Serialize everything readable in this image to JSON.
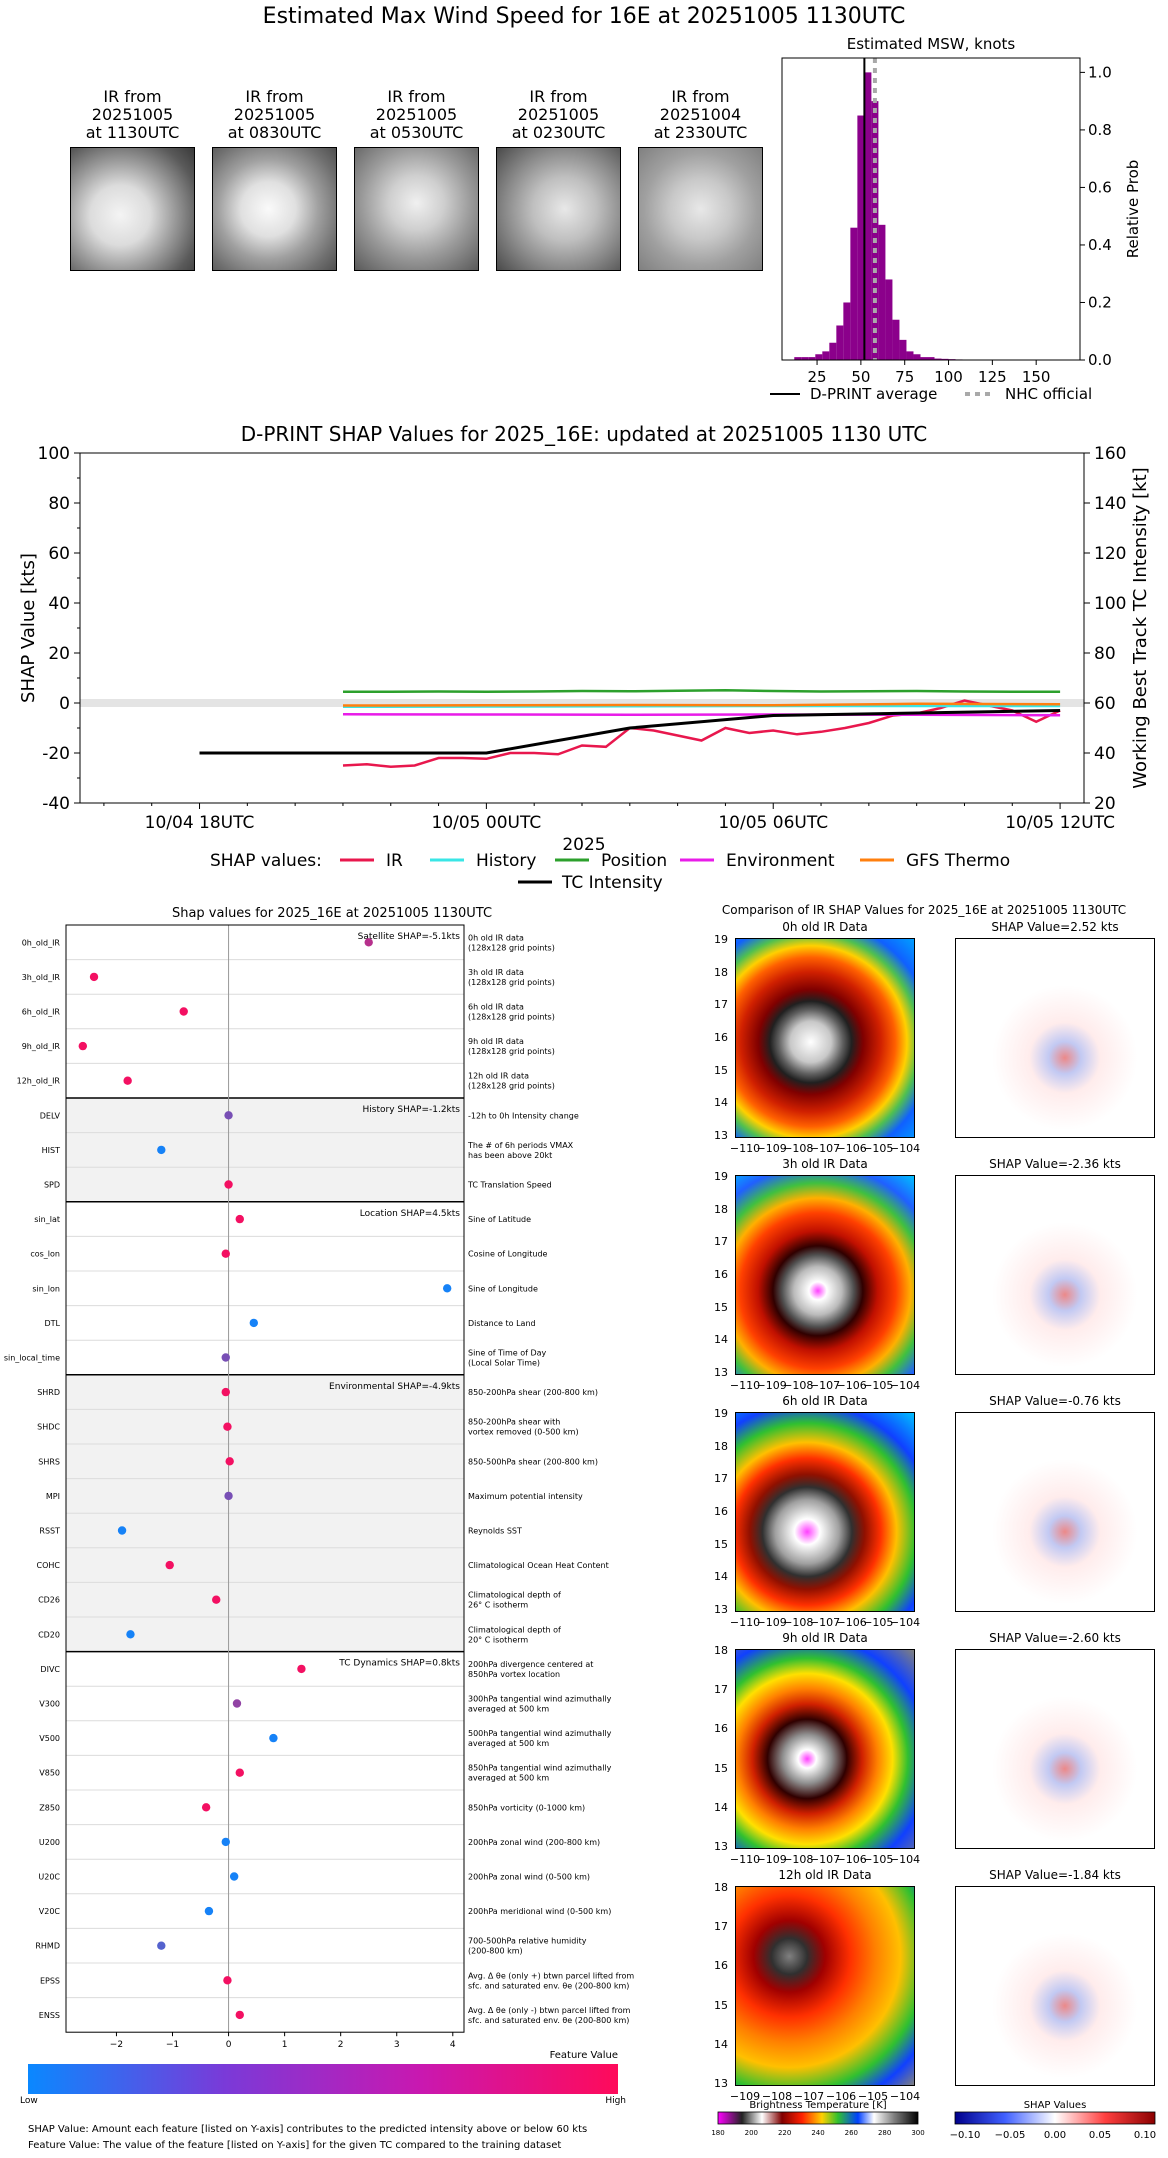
{
  "page_title": "Estimated Max Wind Speed for 16E at 20251005 1130UTC",
  "ir_thumbs": [
    {
      "l1": "IR from",
      "l2": "20251005",
      "l3": "at 1130UTC"
    },
    {
      "l1": "IR from",
      "l2": "20251005",
      "l3": "at 0830UTC"
    },
    {
      "l1": "IR from",
      "l2": "20251005",
      "l3": "at 0530UTC"
    },
    {
      "l1": "IR from",
      "l2": "20251005",
      "l3": "at 0230UTC"
    },
    {
      "l1": "IR from",
      "l2": "20251004",
      "l3": "at 2330UTC"
    }
  ],
  "chart_data": [
    {
      "type": "bar",
      "title": "Estimated MSW, knots",
      "ylabel": "Relative Prob",
      "xlim": [
        5,
        175
      ],
      "ylim": [
        0,
        1.05
      ],
      "xticks": [
        25,
        50,
        75,
        100,
        125,
        150
      ],
      "yticks": [
        0.0,
        0.2,
        0.4,
        0.6,
        0.8,
        1.0
      ],
      "bin_width": 4,
      "bins": [
        [
          12,
          0.01
        ],
        [
          16,
          0.01
        ],
        [
          20,
          0.01
        ],
        [
          24,
          0.02
        ],
        [
          28,
          0.03
        ],
        [
          32,
          0.06
        ],
        [
          36,
          0.12
        ],
        [
          40,
          0.2
        ],
        [
          44,
          0.46
        ],
        [
          48,
          0.85
        ],
        [
          52,
          1.0
        ],
        [
          56,
          0.9
        ],
        [
          60,
          0.47
        ],
        [
          64,
          0.28
        ],
        [
          68,
          0.14
        ],
        [
          72,
          0.07
        ],
        [
          76,
          0.03
        ],
        [
          80,
          0.02
        ],
        [
          84,
          0.01
        ],
        [
          88,
          0.01
        ],
        [
          92,
          0.005
        ],
        [
          96,
          0.004
        ],
        [
          100,
          0.003
        ],
        [
          104,
          0.002
        ],
        [
          108,
          0.001
        ]
      ],
      "dprint_average": 52,
      "nhc_official": 58,
      "legend": [
        "D-PRINT average",
        "NHC official"
      ],
      "colors": {
        "bars": "#8b008b",
        "avg": "#000000",
        "nhc": "#a9a9a9"
      }
    },
    {
      "type": "line",
      "title": "D-PRINT SHAP Values for 2025_16E: updated at 20251005 1130 UTC",
      "ylabel": "SHAP Value [kts]",
      "y2label": "Working Best Track TC Intensity [kt]",
      "xlabel": "2025",
      "xlim": [
        -2.5,
        18.5
      ],
      "ylim": [
        -40,
        100
      ],
      "y2lim": [
        20,
        160
      ],
      "yticks": [
        -40,
        -20,
        0,
        20,
        40,
        60,
        80,
        100
      ],
      "y2ticks": [
        20,
        40,
        60,
        80,
        100,
        120,
        140,
        160
      ],
      "xtick_hours": [
        0,
        6,
        12,
        18
      ],
      "xtick_labels": [
        "10/04 18UTC",
        "10/05 00UTC",
        "10/05 06UTC",
        "10/05 12UTC"
      ],
      "legend_title": "SHAP values:",
      "series": [
        {
          "name": "IR",
          "color": "#e8174d",
          "x": [
            3,
            3.5,
            4,
            4.5,
            5,
            5.5,
            6,
            6.5,
            7,
            7.5,
            8,
            8.5,
            9,
            9.5,
            10,
            10.5,
            11,
            11.5,
            12,
            12.5,
            13,
            13.5,
            14,
            14.5,
            15,
            15.5,
            16,
            16.5,
            17,
            17.5,
            18
          ],
          "y": [
            -25,
            -24.5,
            -25.5,
            -25,
            -22,
            -22,
            -22.3,
            -20,
            -20,
            -20.5,
            -17,
            -17.5,
            -10,
            -11,
            -13,
            -15,
            -10,
            -12,
            -11,
            -12.5,
            -11.5,
            -10,
            -8,
            -5,
            -4.2,
            -2,
            1,
            -1,
            -3,
            -7.5,
            -3
          ]
        },
        {
          "name": "History",
          "color": "#39e6e6",
          "x": [
            3,
            6,
            9,
            12,
            15,
            18
          ],
          "y": [
            -1.5,
            -1.4,
            -1.3,
            -1.2,
            -1.2,
            -1.2
          ]
        },
        {
          "name": "Position",
          "color": "#2ca02c",
          "x": [
            3,
            4,
            5,
            6,
            7,
            8,
            9,
            10,
            11,
            12,
            13,
            14,
            15,
            16,
            17,
            18
          ],
          "y": [
            4.5,
            4.5,
            4.6,
            4.5,
            4.6,
            4.8,
            4.7,
            4.9,
            5.1,
            4.8,
            4.6,
            4.7,
            4.8,
            4.6,
            4.5,
            4.5
          ]
        },
        {
          "name": "Environment",
          "color": "#e81ce8",
          "x": [
            3,
            6,
            9,
            12,
            15,
            18
          ],
          "y": [
            -4.5,
            -4.6,
            -4.7,
            -4.6,
            -4.7,
            -4.9
          ]
        },
        {
          "name": "GFS Thermo",
          "color": "#ff7f0e",
          "x": [
            3,
            6,
            9,
            12,
            15,
            18
          ],
          "y": [
            -1,
            -0.9,
            -0.8,
            -0.9,
            -0.3,
            -0.5
          ]
        }
      ],
      "tc_intensity": {
        "name": "TC Intensity",
        "color": "#000000",
        "x": [
          0,
          6,
          9,
          12,
          18
        ],
        "y": [
          40,
          40,
          50,
          55,
          57
        ]
      }
    },
    {
      "type": "scatter",
      "title": "Shap values for 2025_16E at 20251005 1130UTC",
      "xlabel": "SHAP Value [kts]",
      "xlim": [
        -2.9,
        4.2
      ],
      "xticks": [
        -2,
        -1,
        0,
        1,
        2,
        3,
        4
      ],
      "groups": [
        {
          "header": "Satellite SHAP=-5.1kts",
          "shaded": false,
          "features": [
            {
              "name": "0h_old_IR",
              "shap": 2.5,
              "fv": 0.7,
              "desc": [
                "0h old IR data",
                "(128x128 grid points)"
              ]
            },
            {
              "name": "3h_old_IR",
              "shap": -2.4,
              "fv": 0.95,
              "desc": [
                "3h old IR data",
                "(128x128 grid points)"
              ]
            },
            {
              "name": "6h_old_IR",
              "shap": -0.8,
              "fv": 0.95,
              "desc": [
                "6h old IR data",
                "(128x128 grid points)"
              ]
            },
            {
              "name": "9h_old_IR",
              "shap": -2.6,
              "fv": 0.95,
              "desc": [
                "9h old IR data",
                "(128x128 grid points)"
              ]
            },
            {
              "name": "12h_old_IR",
              "shap": -1.8,
              "fv": 0.95,
              "desc": [
                "12h old IR data",
                "(128x128 grid points)"
              ]
            }
          ]
        },
        {
          "header": "History SHAP=-1.2kts",
          "shaded": true,
          "features": [
            {
              "name": "DELV",
              "shap": 0.0,
              "fv": 0.45,
              "desc": [
                "-12h to 0h Intensity change"
              ]
            },
            {
              "name": "HIST",
              "shap": -1.2,
              "fv": 0.05,
              "desc": [
                "The # of 6h periods VMAX",
                "has been above 20kt"
              ]
            },
            {
              "name": "SPD",
              "shap": 0.0,
              "fv": 0.95,
              "desc": [
                "TC Translation Speed"
              ]
            }
          ]
        },
        {
          "header": "Location SHAP=4.5kts",
          "shaded": false,
          "features": [
            {
              "name": "sin_lat",
              "shap": 0.2,
              "fv": 0.95,
              "desc": [
                "Sine of Latitude"
              ]
            },
            {
              "name": "cos_lon",
              "shap": -0.05,
              "fv": 0.95,
              "desc": [
                "Cosine of Longitude"
              ]
            },
            {
              "name": "sin_lon",
              "shap": 3.9,
              "fv": 0.05,
              "desc": [
                "Sine of Longitude"
              ]
            },
            {
              "name": "DTL",
              "shap": 0.45,
              "fv": 0.05,
              "desc": [
                "Distance to Land"
              ]
            },
            {
              "name": "sin_local_time",
              "shap": -0.05,
              "fv": 0.45,
              "desc": [
                "Sine of Time of Day",
                "(Local Solar Time)"
              ]
            }
          ]
        },
        {
          "header": "Environmental SHAP=-4.9kts",
          "shaded": true,
          "features": [
            {
              "name": "SHRD",
              "shap": -0.05,
              "fv": 0.95,
              "desc": [
                "850-200hPa shear (200-800 km)"
              ]
            },
            {
              "name": "SHDC",
              "shap": -0.02,
              "fv": 0.95,
              "desc": [
                "850-200hPa shear with",
                "vortex removed (0-500 km)"
              ]
            },
            {
              "name": "SHRS",
              "shap": 0.02,
              "fv": 0.95,
              "desc": [
                "850-500hPa shear (200-800 km)"
              ]
            },
            {
              "name": "MPI",
              "shap": 0.0,
              "fv": 0.45,
              "desc": [
                "Maximum potential intensity"
              ]
            },
            {
              "name": "RSST",
              "shap": -1.9,
              "fv": 0.05,
              "desc": [
                "Reynolds SST"
              ]
            },
            {
              "name": "COHC",
              "shap": -1.05,
              "fv": 0.95,
              "desc": [
                "Climatological Ocean Heat Content"
              ]
            },
            {
              "name": "CD26",
              "shap": -0.22,
              "fv": 0.95,
              "desc": [
                "Climatological depth of",
                "26° C isotherm"
              ]
            },
            {
              "name": "CD20",
              "shap": -1.75,
              "fv": 0.05,
              "desc": [
                "Climatological depth of",
                "20° C isotherm"
              ]
            }
          ]
        },
        {
          "header": "TC Dynamics SHAP=0.8kts",
          "shaded": false,
          "features": [
            {
              "name": "DIVC",
              "shap": 1.3,
              "fv": 0.95,
              "desc": [
                "200hPa divergence centered at",
                "850hPa vortex location"
              ]
            },
            {
              "name": "V300",
              "shap": 0.15,
              "fv": 0.55,
              "desc": [
                "300hPa tangential wind azimuthally",
                "averaged at 500 km"
              ]
            },
            {
              "name": "V500",
              "shap": 0.8,
              "fv": 0.05,
              "desc": [
                "500hPa tangential wind azimuthally",
                "averaged at 500 km"
              ]
            },
            {
              "name": "V850",
              "shap": 0.2,
              "fv": 0.95,
              "desc": [
                "850hPa tangential wind azimuthally",
                "averaged at 500 km"
              ]
            },
            {
              "name": "Z850",
              "shap": -0.4,
              "fv": 0.95,
              "desc": [
                "850hPa vorticity (0-1000 km)"
              ]
            },
            {
              "name": "U200",
              "shap": -0.05,
              "fv": 0.05,
              "desc": [
                "200hPa zonal wind (200-800 km)"
              ]
            },
            {
              "name": "U20C",
              "shap": 0.1,
              "fv": 0.05,
              "desc": [
                "200hPa zonal wind (0-500 km)"
              ]
            },
            {
              "name": "V20C",
              "shap": -0.35,
              "fv": 0.05,
              "desc": [
                "200hPa meridional wind (0-500 km)"
              ]
            },
            {
              "name": "RHMD",
              "shap": -1.2,
              "fv": 0.3,
              "desc": [
                "700-500hPa relative humidity",
                "(200-800 km)"
              ]
            },
            {
              "name": "EPSS",
              "shap": -0.02,
              "fv": 0.95,
              "desc": [
                "Avg. Δ θe (only +) btwn parcel lifted from",
                "sfc. and saturated env. θe (200-800 km)"
              ]
            },
            {
              "name": "ENSS",
              "shap": 0.2,
              "fv": 0.95,
              "desc": [
                "Avg. Δ θe (only -) btwn parcel lifted from",
                "sfc. and saturated env. θe (200-800 km)"
              ]
            }
          ]
        }
      ],
      "colors": {
        "low": "#0a88ff",
        "high": "#ff0a5a"
      }
    }
  ],
  "feature_colorbar": {
    "title": "Feature Value",
    "low": "Low",
    "high": "High"
  },
  "footnotes": [
    "SHAP Value: Amount each feature [listed on Y-axis] contributes to the predicted intensity above or below 60 kts",
    "Feature Value: The value of the feature [listed on Y-axis] for the given TC compared to the training dataset"
  ],
  "ir_comparison": {
    "title": "Comparison of IR SHAP Values for 2025_16E at 20251005 1130UTC",
    "rows": [
      {
        "ir_title": "0h old IR Data",
        "shap_title": "SHAP Value=2.52 kts",
        "yticks": [
          "19",
          "18",
          "17",
          "16",
          "15",
          "14",
          "13"
        ],
        "xticks": [
          "−110",
          "−109",
          "−108",
          "−107",
          "−106",
          "−105",
          "−104"
        ]
      },
      {
        "ir_title": "3h old IR Data",
        "shap_title": "SHAP Value=-2.36 kts",
        "yticks": [
          "19",
          "18",
          "17",
          "16",
          "15",
          "14",
          "13"
        ],
        "xticks": [
          "−110",
          "−109",
          "−108",
          "−107",
          "−106",
          "−105",
          "−104"
        ]
      },
      {
        "ir_title": "6h old IR Data",
        "shap_title": "SHAP Value=-0.76 kts",
        "yticks": [
          "19",
          "18",
          "17",
          "16",
          "15",
          "14",
          "13"
        ],
        "xticks": [
          "−110",
          "−109",
          "−108",
          "−107",
          "−106",
          "−105",
          "−104"
        ]
      },
      {
        "ir_title": "9h old IR Data",
        "shap_title": "SHAP Value=-2.60 kts",
        "yticks": [
          "18",
          "17",
          "16",
          "15",
          "14",
          "13"
        ],
        "xticks": [
          "−110",
          "−109",
          "−108",
          "−107",
          "−106",
          "−105",
          "−104"
        ]
      },
      {
        "ir_title": "12h old IR Data",
        "shap_title": "SHAP Value=-1.84 kts",
        "yticks": [
          "18",
          "17",
          "16",
          "15",
          "14",
          "13"
        ],
        "xticks": [
          "−109",
          "−108",
          "−107",
          "−106",
          "−105",
          "−104"
        ]
      }
    ],
    "bt_colorbar": {
      "title": "Brightness Temperature [K]",
      "ticks": [
        "180",
        "200",
        "220",
        "240",
        "260",
        "280",
        "300"
      ]
    },
    "shap_colorbar": {
      "title": "SHAP Values",
      "ticks": [
        "−0.10",
        "−0.05",
        "0.00",
        "0.05",
        "0.10"
      ]
    }
  }
}
